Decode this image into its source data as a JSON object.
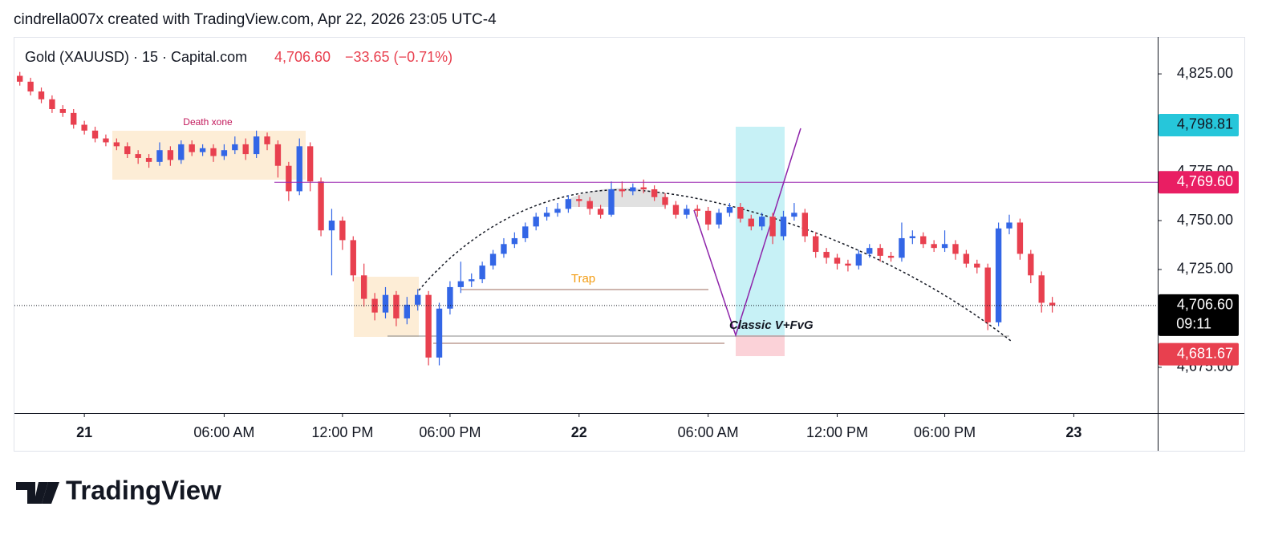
{
  "header": "cindrella007x created with TradingView.com, Apr 22, 2026 23:05 UTC-4",
  "logo": "TradingView",
  "chart_data": {
    "type": "candlestick",
    "title": "Gold (XAUUSD) · 15 · Capital.com",
    "last_price": "4,706.60",
    "change": "−33.65 (−0.71%)",
    "up_color": "#3366e6",
    "down_color": "#e8404f",
    "open": [
      4824,
      4821,
      4816,
      4812,
      4807,
      4805,
      4799,
      4796,
      4792,
      4790,
      4788,
      4784,
      4782,
      4780,
      4786,
      4781,
      4789,
      4785,
      4787,
      4783,
      4786,
      4789,
      4784,
      4793,
      4789,
      4778,
      4765,
      4788,
      4770,
      4745,
      4750,
      4740,
      4722,
      4710,
      4703,
      4712,
      4700,
      4707,
      4712,
      4680,
      4705,
      4716,
      4719,
      4720,
      4727,
      4733,
      4738,
      4741,
      4747,
      4752,
      4754,
      4756,
      4761,
      4760,
      4756,
      4753,
      4766,
      4765,
      4767,
      4766,
      4762,
      4758,
      4753,
      4756,
      4755,
      4748,
      4754,
      4757,
      4751,
      4747,
      4752,
      4742,
      4752,
      4754,
      4742,
      4734,
      4731,
      4728,
      4727,
      4733,
      4736,
      4732,
      4731,
      4741,
      4742,
      4738,
      4736,
      4738,
      4733,
      4728,
      4726,
      4698,
      4746,
      4749,
      4733,
      4722,
      4708
    ],
    "high": [
      4826,
      4823,
      4818,
      4814,
      4809,
      4807,
      4801,
      4798,
      4794,
      4792,
      4790,
      4786,
      4784,
      4790,
      4788,
      4791,
      4791,
      4789,
      4789,
      4789,
      4793,
      4792,
      4796,
      4795,
      4791,
      4780,
      4792,
      4790,
      4772,
      4756,
      4752,
      4742,
      4728,
      4713,
      4716,
      4714,
      4711,
      4715,
      4714,
      4708,
      4719,
      4729,
      4723,
      4729,
      4735,
      4741,
      4744,
      4749,
      4754,
      4757,
      4759,
      4763,
      4763,
      4762,
      4758,
      4770,
      4770,
      4769,
      4771,
      4768,
      4764,
      4760,
      4758,
      4758,
      4757,
      4756,
      4759,
      4759,
      4753,
      4754,
      4754,
      4755,
      4759,
      4756,
      4744,
      4736,
      4733,
      4730,
      4735,
      4738,
      4738,
      4734,
      4749,
      4745,
      4744,
      4740,
      4745,
      4740,
      4735,
      4730,
      4728,
      4749,
      4753,
      4751,
      4735,
      4724,
      4711
    ],
    "low": [
      4819,
      4814,
      4810,
      4805,
      4803,
      4797,
      4794,
      4790,
      4788,
      4786,
      4782,
      4779,
      4777,
      4778,
      4778,
      4779,
      4783,
      4783,
      4780,
      4781,
      4784,
      4781,
      4782,
      4786,
      4772,
      4760,
      4763,
      4765,
      4742,
      4722,
      4735,
      4719,
      4706,
      4699,
      4700,
      4696,
      4697,
      4704,
      4676,
      4676,
      4702,
      4713,
      4716,
      4718,
      4725,
      4731,
      4736,
      4739,
      4745,
      4750,
      4752,
      4754,
      4757,
      4753,
      4751,
      4752,
      4762,
      4763,
      4764,
      4760,
      4756,
      4751,
      4751,
      4752,
      4745,
      4746,
      4752,
      4749,
      4745,
      4745,
      4738,
      4740,
      4750,
      4739,
      4731,
      4728,
      4725,
      4724,
      4725,
      4731,
      4729,
      4729,
      4729,
      4738,
      4736,
      4734,
      4734,
      4730,
      4726,
      4723,
      4694,
      4696,
      4743,
      4730,
      4718,
      4703,
      4703
    ],
    "close": [
      4821,
      4816,
      4812,
      4807,
      4805,
      4799,
      4796,
      4792,
      4790,
      4788,
      4784,
      4782,
      4780,
      4786,
      4781,
      4789,
      4785,
      4787,
      4783,
      4786,
      4789,
      4784,
      4793,
      4789,
      4778,
      4765,
      4788,
      4770,
      4745,
      4750,
      4740,
      4722,
      4710,
      4703,
      4712,
      4700,
      4707,
      4712,
      4680,
      4705,
      4716,
      4719,
      4720,
      4727,
      4733,
      4738,
      4741,
      4747,
      4752,
      4754,
      4756,
      4761,
      4760,
      4756,
      4753,
      4766,
      4765,
      4767,
      4766,
      4762,
      4758,
      4753,
      4756,
      4755,
      4748,
      4754,
      4757,
      4751,
      4747,
      4752,
      4742,
      4752,
      4754,
      4742,
      4734,
      4731,
      4728,
      4727,
      4733,
      4736,
      4732,
      4731,
      4741,
      4742,
      4738,
      4736,
      4738,
      4733,
      4728,
      4726,
      4698,
      4746,
      4749,
      4733,
      4722,
      4708,
      4706.6
    ],
    "xlim": [
      -0.5,
      105.8
    ],
    "xticks": [
      {
        "value": 6,
        "label": "21"
      },
      {
        "value": 19,
        "label": "06:00 AM"
      },
      {
        "value": 30,
        "label": "12:00 PM"
      },
      {
        "value": 40,
        "label": "06:00 PM"
      },
      {
        "value": 52,
        "label": "22"
      },
      {
        "value": 64,
        "label": "06:00 AM"
      },
      {
        "value": 76,
        "label": "12:00 PM"
      },
      {
        "value": 86,
        "label": "06:00 PM"
      },
      {
        "value": 98,
        "label": "23"
      }
    ],
    "ylim": [
      4651.6,
      4843.9
    ],
    "yticks": [
      {
        "value": 4675,
        "label": "4,675.00"
      },
      {
        "value": 4725,
        "label": "4,725.00"
      },
      {
        "value": 4750,
        "label": "4,750.00"
      },
      {
        "value": 4775,
        "label": "4,775.00"
      },
      {
        "value": 4825,
        "label": "4,825.00"
      }
    ],
    "price_markers": [
      {
        "value": 4798.81,
        "label": "4,798.81",
        "color": "#26c6da"
      },
      {
        "value": 4769.6,
        "label": "4,769.60",
        "color": "#e91e63"
      },
      {
        "value": 4706.6,
        "label": "4,706.60",
        "color": "#000000",
        "countdown": "09:11"
      },
      {
        "value": 4681.67,
        "label": "4,681.67",
        "color": "#e8404f"
      }
    ],
    "annotations": [
      "Death xone",
      "Trap",
      "Classic V+FvG"
    ]
  }
}
